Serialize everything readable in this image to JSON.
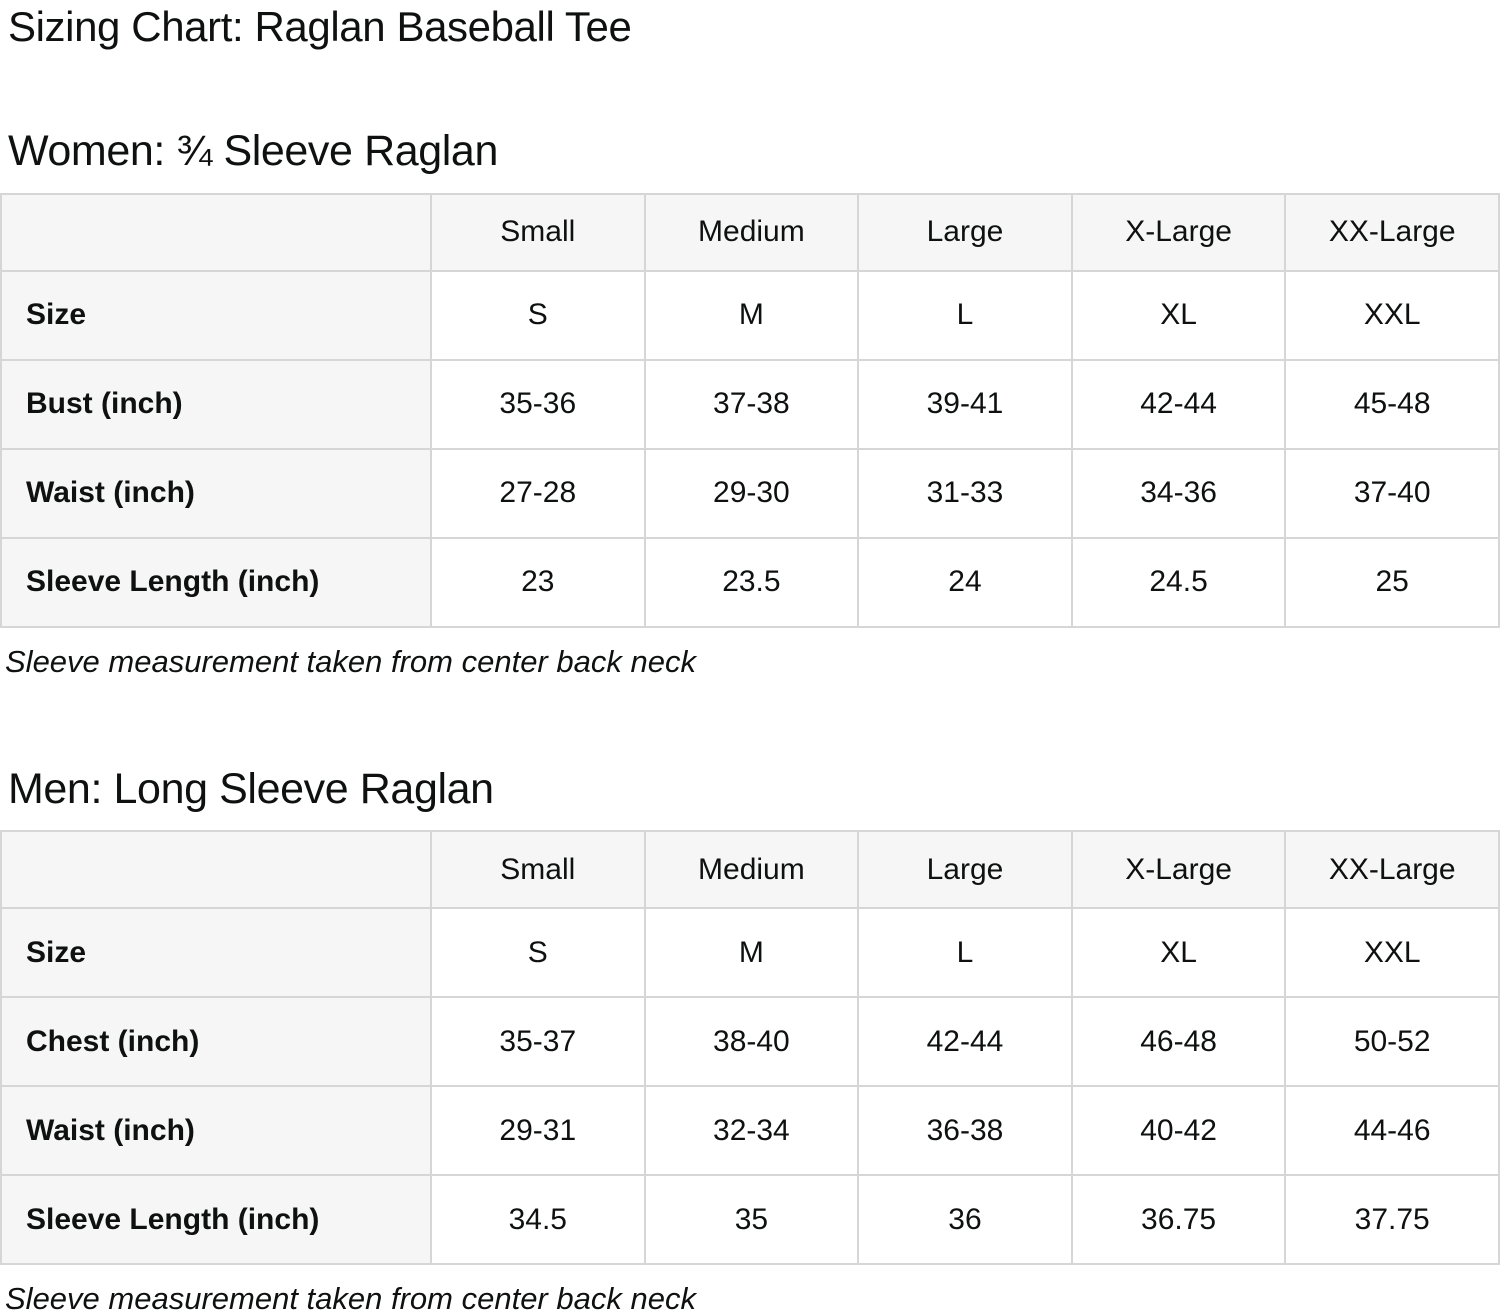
{
  "page": {
    "title": "Sizing Chart: Raglan Baseball Tee"
  },
  "colors": {
    "cell_background": "#f6f6f6",
    "border": "#d6d6d6",
    "text": "#0f1111",
    "data_cell_background": "#ffffff"
  },
  "sections": [
    {
      "heading": "Women: ¾ Sleeve Raglan",
      "columns": [
        "",
        "Small",
        "Medium",
        "Large",
        "X-Large",
        "XX-Large"
      ],
      "rows": [
        {
          "label": "Size",
          "values": [
            "S",
            "M",
            "L",
            "XL",
            "XXL"
          ]
        },
        {
          "label": "Bust (inch)",
          "values": [
            "35-36",
            "37-38",
            "39-41",
            "42-44",
            "45-48"
          ]
        },
        {
          "label": "Waist (inch)",
          "values": [
            "27-28",
            "29-30",
            "31-33",
            "34-36",
            "37-40"
          ]
        },
        {
          "label": "Sleeve Length (inch)",
          "values": [
            "23",
            "23.5",
            "24",
            "24.5",
            "25"
          ]
        }
      ],
      "note": "Sleeve measurement taken from center back neck"
    },
    {
      "heading": "Men: Long Sleeve Raglan",
      "columns": [
        "",
        "Small",
        "Medium",
        "Large",
        "X-Large",
        "XX-Large"
      ],
      "rows": [
        {
          "label": "Size",
          "values": [
            "S",
            "M",
            "L",
            "XL",
            "XXL"
          ]
        },
        {
          "label": "Chest (inch)",
          "values": [
            "35-37",
            "38-40",
            "42-44",
            "46-48",
            "50-52"
          ]
        },
        {
          "label": "Waist (inch)",
          "values": [
            "29-31",
            "32-34",
            "36-38",
            "40-42",
            "44-46"
          ]
        },
        {
          "label": "Sleeve Length (inch)",
          "values": [
            "34.5",
            "35",
            "36",
            "36.75",
            "37.75"
          ]
        }
      ],
      "note": "Sleeve measurement taken from center back neck"
    }
  ]
}
